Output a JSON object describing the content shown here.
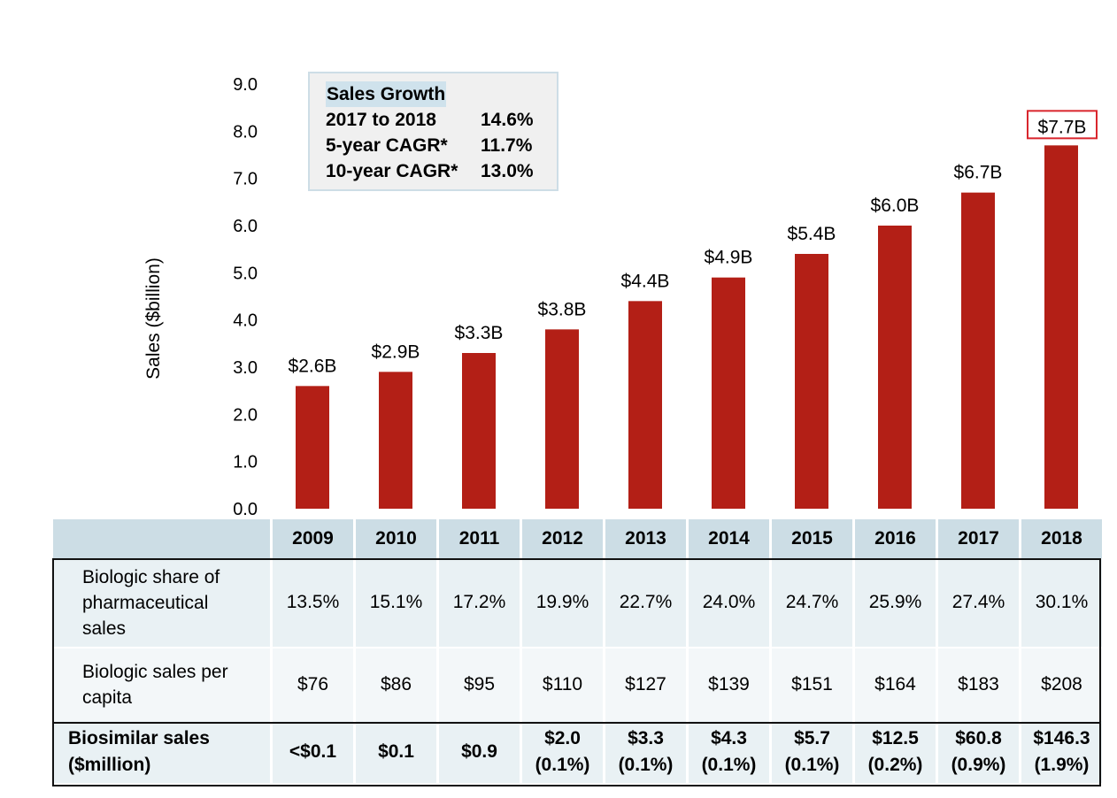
{
  "chart_data": {
    "type": "bar",
    "title": "",
    "xlabel": "",
    "ylabel": "Sales ($billion)",
    "ylim": [
      0,
      9
    ],
    "yticks": [
      "0.0",
      "1.0",
      "2.0",
      "3.0",
      "4.0",
      "5.0",
      "6.0",
      "7.0",
      "8.0",
      "9.0"
    ],
    "grid": false,
    "categories": [
      "2009",
      "2010",
      "2011",
      "2012",
      "2013",
      "2014",
      "2015",
      "2016",
      "2017",
      "2018"
    ],
    "values": [
      2.6,
      2.9,
      3.3,
      3.8,
      4.4,
      4.9,
      5.4,
      6.0,
      6.7,
      7.7
    ],
    "data_labels": [
      "$2.6B",
      "$2.9B",
      "$3.3B",
      "$3.8B",
      "$4.4B",
      "$4.9B",
      "$5.4B",
      "$6.0B",
      "$6.7B",
      "$7.7B"
    ],
    "highlighted_label_index": 9,
    "bar_color": "#b31f16",
    "highlight_box_color": "#d9262d",
    "annotation": {
      "title": "Sales Growth",
      "rows": [
        {
          "label": "2017 to 2018",
          "value": "14.6%"
        },
        {
          "label": "5-year CAGR*",
          "value": "11.7%"
        },
        {
          "label": "10-year CAGR*",
          "value": "13.0%"
        }
      ]
    }
  },
  "table": {
    "years": [
      "2009",
      "2010",
      "2011",
      "2012",
      "2013",
      "2014",
      "2015",
      "2016",
      "2017",
      "2018"
    ],
    "rows": [
      {
        "label_lines": [
          "Biologic share of",
          "pharmaceutical",
          "sales"
        ],
        "values": [
          "13.5%",
          "15.1%",
          "17.2%",
          "19.9%",
          "22.7%",
          "24.0%",
          "24.7%",
          "25.9%",
          "27.4%",
          "30.1%"
        ]
      },
      {
        "label_lines": [
          "Biologic sales per",
          "capita"
        ],
        "values": [
          "$76",
          "$86",
          "$95",
          "$110",
          "$127",
          "$139",
          "$151",
          "$164",
          "$183",
          "$208"
        ]
      },
      {
        "label_lines": [
          "Biosimilar sales",
          "($million)"
        ],
        "values": [
          {
            "main": "<$0.1",
            "sub": ""
          },
          {
            "main": "$0.1",
            "sub": ""
          },
          {
            "main": "$0.9",
            "sub": ""
          },
          {
            "main": "$2.0",
            "sub": "(0.1%)"
          },
          {
            "main": "$3.3",
            "sub": "(0.1%)"
          },
          {
            "main": "$4.3",
            "sub": "(0.1%)"
          },
          {
            "main": "$5.7",
            "sub": "(0.1%)"
          },
          {
            "main": "$12.5",
            "sub": "(0.2%)"
          },
          {
            "main": "$60.8",
            "sub": "(0.9%)"
          },
          {
            "main": "$146.3",
            "sub": "(1.9%)"
          }
        ]
      }
    ]
  }
}
